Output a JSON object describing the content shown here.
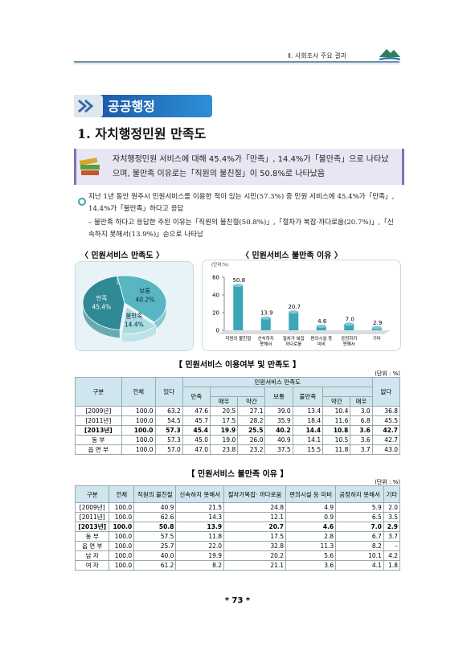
{
  "header": {
    "title": "Ⅱ. 사회조사 주요 결과"
  },
  "section": {
    "title": "공공행정"
  },
  "heading": "1. 자치행정민원 만족도",
  "summary": "자치행정민원 서비스에 대해 45.4%가「만족」, 14.4%가「불만족」으로 나타났으며, 불만족 이유로는「직원의 불친절」이 50.8%로 나타났음",
  "bullets": [
    "지난 1년 동안 원주시 민원서비스를 이용한 적이 있는 시민(57.3%) 중 민원 서비스에 45.4%가「만족」, 14.4%가「불만족」하다고 응답",
    "– 불만족 하다고 응답한 주된 이유는「직원의 불친절(50.8%)」,「절차가 복잡·까다로움(20.7%)」,「신속하지 못해서(13.9%)」순으로 나타남"
  ],
  "pie_chart": {
    "type": "pie",
    "title": "〈 민원서비스 만족도 〉",
    "categories": [
      "만족",
      "보통",
      "불만족"
    ],
    "values": [
      45.4,
      40.2,
      14.4
    ],
    "value_labels": [
      "45.4%",
      "40.2%",
      "14.4%"
    ],
    "colors": [
      "#2f8a96",
      "#58b6c2",
      "#a9dbe2"
    ]
  },
  "bar_chart": {
    "type": "bar",
    "title": "〈 민원서비스 불만족 이유 〉",
    "unit": "(단위:%)",
    "categories": [
      "직원의 불친절",
      "신속하지 못해서",
      "절차가 복잡 까다로움",
      "편의시설 등 미비",
      "공정하지 못해서",
      "기타"
    ],
    "values": [
      50.8,
      13.9,
      20.7,
      4.6,
      7.0,
      2.9
    ],
    "value_labels": [
      "50.8",
      "13.9",
      "20.7",
      "4.6",
      "7.0",
      "2.9"
    ],
    "color": "#3aa6b8",
    "ylim": [
      0,
      60
    ],
    "yticks": [
      0,
      20,
      40,
      60
    ]
  },
  "table1": {
    "title": "【 민원서비스 이용여부 및 만족도 】",
    "unit": "(단위 : %)",
    "headers": [
      "구분",
      "전체",
      "있다",
      "민원서비스 만족도",
      "없다",
      "만족",
      "보통",
      "불만족",
      "매우",
      "약간",
      "약간",
      "매우"
    ],
    "rows": [
      [
        "[2009년]",
        "100.0",
        "63.2",
        "47.6",
        "20.5",
        "27.1",
        "39.0",
        "13.4",
        "10.4",
        "3.0",
        "36.8"
      ],
      [
        "[2011년]",
        "100.0",
        "54.5",
        "45.7",
        "17.5",
        "28.2",
        "35.9",
        "18.4",
        "11.6",
        "6.8",
        "45.5"
      ],
      [
        "[2013년]",
        "100.0",
        "57.3",
        "45.4",
        "19.9",
        "25.5",
        "40.2",
        "14.4",
        "10.8",
        "3.6",
        "42.7"
      ],
      [
        "동 부",
        "100.0",
        "57.3",
        "45.0",
        "19.0",
        "26.0",
        "40.9",
        "14.1",
        "10.5",
        "3.6",
        "42.7"
      ],
      [
        "읍 면 부",
        "100.0",
        "57.0",
        "47.0",
        "23.8",
        "23.2",
        "37.5",
        "15.5",
        "11.8",
        "3.7",
        "43.0"
      ]
    ]
  },
  "table2": {
    "title": "【 민원서비스 불만족 이유 】",
    "unit": "(단위 : %)",
    "headers": [
      "구분",
      "전체",
      "직원의 불친절",
      "신속하지 못해서",
      "절차가복잡· 까다로움",
      "편의시설 등 미비",
      "공정하지 못해서",
      "기타"
    ],
    "rows": [
      [
        "[2009년]",
        "100.0",
        "40.9",
        "21.5",
        "24.8",
        "4.9",
        "5.9",
        "2.0"
      ],
      [
        "[2011년]",
        "100.0",
        "62.6",
        "14.3",
        "12.1",
        "0.9",
        "6.5",
        "3.5"
      ],
      [
        "[2013년]",
        "100.0",
        "50.8",
        "13.9",
        "20.7",
        "4.6",
        "7.0",
        "2.9"
      ],
      [
        "동 부",
        "100.0",
        "57.5",
        "11.8",
        "17.5",
        "2.8",
        "6.7",
        "3.7"
      ],
      [
        "읍 면 부",
        "100.0",
        "25.7",
        "22.0",
        "32.8",
        "11.3",
        "8.2",
        "–"
      ],
      [
        "남 자",
        "100.0",
        "40.0",
        "19.9",
        "20.2",
        "5.6",
        "10.1",
        "4.2"
      ],
      [
        "여 자",
        "100.0",
        "61.2",
        "8.2",
        "21.1",
        "3.6",
        "4.1",
        "1.8"
      ]
    ]
  },
  "footer": {
    "page": "* 73 *"
  }
}
